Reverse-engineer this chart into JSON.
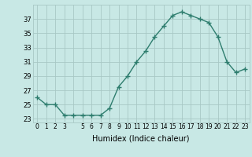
{
  "x": [
    0,
    1,
    2,
    3,
    4,
    5,
    6,
    7,
    8,
    9,
    10,
    11,
    12,
    13,
    14,
    15,
    16,
    17,
    18,
    19,
    20,
    21,
    22,
    23
  ],
  "y": [
    26.0,
    25.0,
    25.0,
    23.5,
    23.5,
    23.5,
    23.5,
    23.5,
    24.5,
    27.5,
    29.0,
    31.0,
    32.5,
    34.5,
    36.0,
    37.5,
    38.0,
    37.5,
    37.0,
    36.5,
    34.5,
    31.0,
    29.5,
    30.0
  ],
  "line_color": "#2e7d6e",
  "marker": "+",
  "xlabel": "Humidex (Indice chaleur)",
  "ylim": [
    22.5,
    39.0
  ],
  "xlim": [
    -0.5,
    23.5
  ],
  "yticks": [
    23,
    25,
    27,
    29,
    31,
    33,
    35,
    37
  ],
  "xtick_labels": [
    "0",
    "1",
    "2",
    "3",
    "",
    "5",
    "6",
    "7",
    "8",
    "9",
    "10",
    "11",
    "12",
    "13",
    "14",
    "15",
    "16",
    "17",
    "18",
    "19",
    "20",
    "21",
    "22",
    "23"
  ],
  "bg_color": "#c8e8e5",
  "grid_color": "#a8c8c5",
  "plot_bg": "#c8e8e5"
}
